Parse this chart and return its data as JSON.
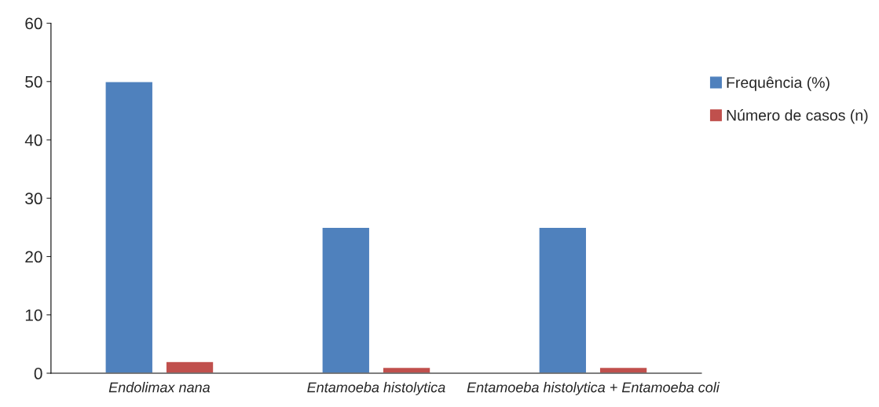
{
  "chart_data": {
    "type": "bar",
    "categories": [
      "Endolimax nana",
      "Entamoeba histolytica",
      "Entamoeba histolytica + Entamoeba coli"
    ],
    "series": [
      {
        "name": "Frequência (%)",
        "color": "#4f81bd",
        "values": [
          50,
          25,
          25
        ]
      },
      {
        "name": "Número de casos (n)",
        "color": "#c0504d",
        "values": [
          2,
          1,
          1
        ]
      }
    ],
    "ylim": [
      0,
      60
    ],
    "yticks": [
      0,
      10,
      20,
      30,
      40,
      50,
      60
    ],
    "grid": false,
    "legend": "right"
  }
}
